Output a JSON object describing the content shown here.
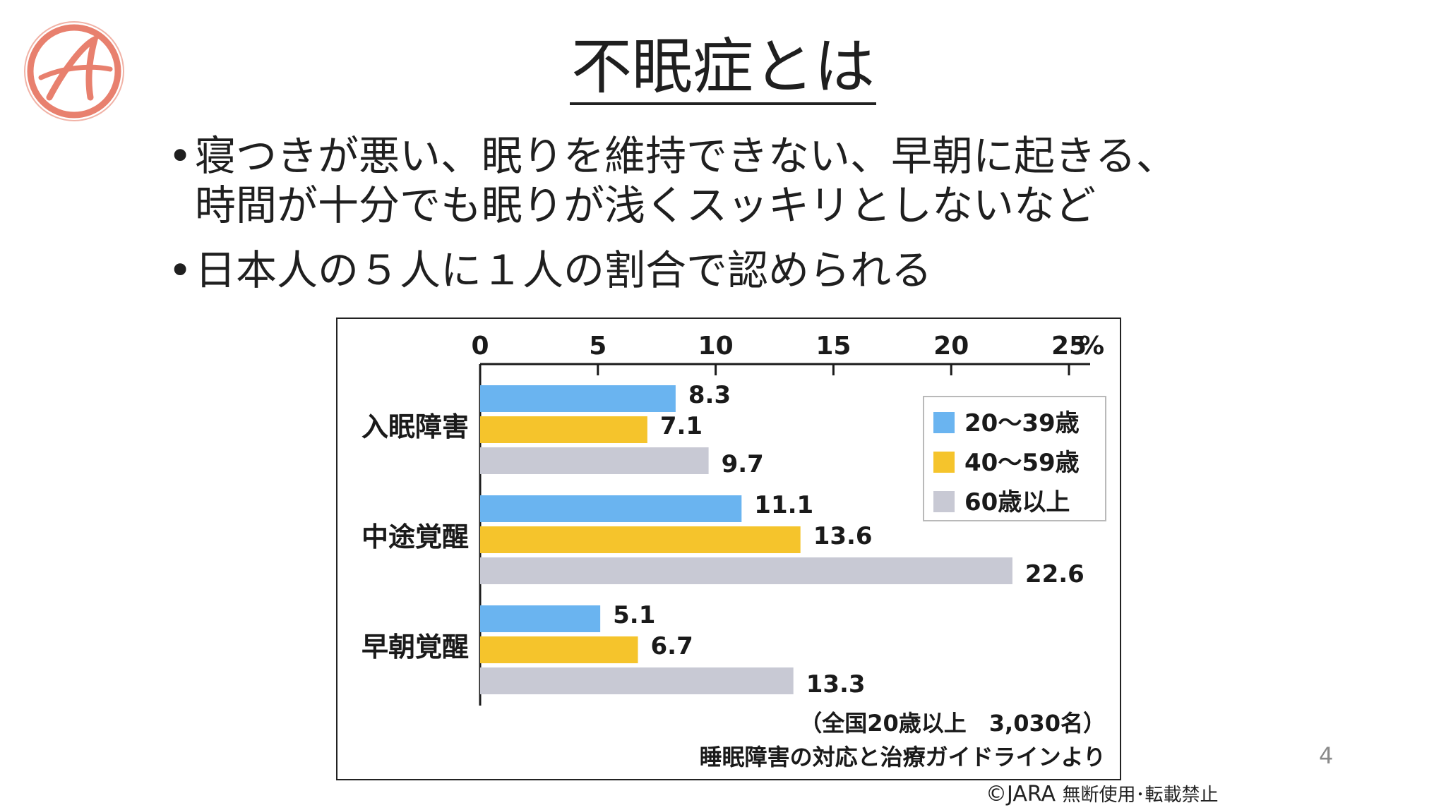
{
  "slide": {
    "title": "不眠症とは",
    "bullets": [
      "寝つきが悪い、眠りを維持できない、早朝に起きる、\n時間が十分でも眠りが浅くスッキリとしないなど",
      "日本人の５人に１人の割合で認められる"
    ],
    "page_number": "4",
    "copyright_main": "©JARA",
    "copyright_note": "無断使用･転載禁止",
    "logo_icon": "circle-a-logo-icon"
  },
  "chart_data": {
    "type": "bar",
    "orientation": "horizontal",
    "x_ticks": [
      "0",
      "5",
      "10",
      "15",
      "20",
      "25"
    ],
    "x_unit": "%",
    "xlim": [
      0,
      25
    ],
    "categories": [
      "入眠障害",
      "中途覚醒",
      "早朝覚醒"
    ],
    "series": [
      {
        "name": "20～39歳",
        "color": "#6ab4f0",
        "values": [
          8.3,
          11.1,
          5.1
        ]
      },
      {
        "name": "40～59歳",
        "color": "#f5c42c",
        "values": [
          7.1,
          13.6,
          6.7
        ]
      },
      {
        "name": "60歳以上",
        "color": "#c8c9d4",
        "values": [
          9.7,
          22.6,
          13.3
        ]
      }
    ],
    "value_labels": [
      [
        "8.3",
        "7.1",
        "9.7"
      ],
      [
        "11.1",
        "13.6",
        "22.6"
      ],
      [
        "5.1",
        "6.7",
        "13.3"
      ]
    ],
    "legend_position": "top-right",
    "notes": [
      "（全国20歳以上　3,030名）",
      "睡眠障害の対応と治療ガイドラインより"
    ]
  }
}
